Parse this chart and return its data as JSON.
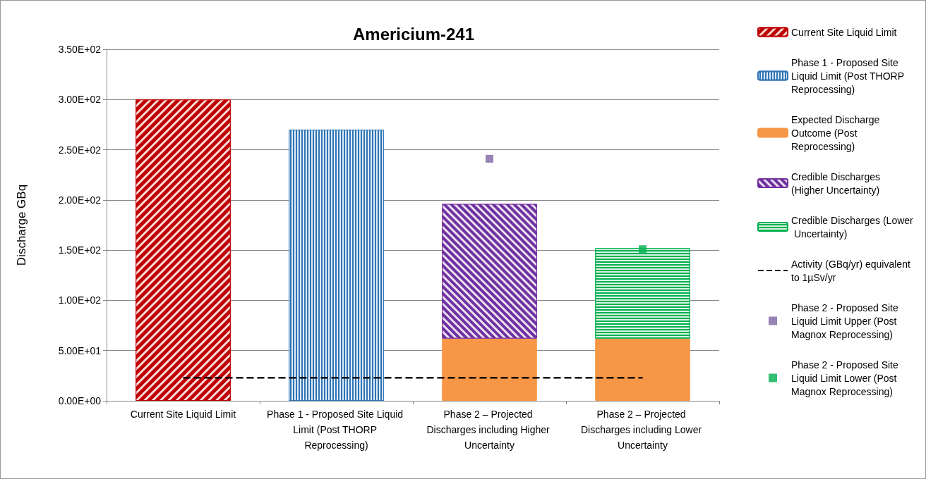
{
  "chart_data": {
    "type": "bar",
    "title": "Americium-241",
    "ylabel": "Discharge GBq",
    "categories": [
      "Current Site Liquid Limit",
      "Phase 1 - Proposed Site Liquid Limit (Post THORP Reprocessing)",
      "Phase 2 – Projected Discharges including Higher Uncertainty",
      "Phase 2 – Projected Discharges including Lower Uncertainty"
    ],
    "stacked": true,
    "grid": "y",
    "legend": "right",
    "ylim": [
      0,
      350
    ],
    "yticks": [
      {
        "value": 0,
        "label": "0.00E+00"
      },
      {
        "value": 50,
        "label": "5.00E+01"
      },
      {
        "value": 100,
        "label": "1.00E+02"
      },
      {
        "value": 150,
        "label": "1.50E+02"
      },
      {
        "value": 200,
        "label": "2.00E+02"
      },
      {
        "value": 250,
        "label": "2.50E+02"
      },
      {
        "value": 300,
        "label": "3.00E+02"
      },
      {
        "value": 350,
        "label": "3.50E+02"
      }
    ],
    "series": [
      {
        "name": "Current Site Liquid Limit",
        "color": "#c00000",
        "values": [
          300,
          null,
          null,
          null
        ]
      },
      {
        "name": "Phase 1 - Proposed Site Liquid Limit (Post THORP Reprocessing)",
        "color": "#2e75b6",
        "values": [
          null,
          270,
          null,
          null
        ]
      },
      {
        "name": "Expected Discharge Outcome (Post Reprocessing)",
        "color": "#f79646",
        "values": [
          null,
          null,
          62,
          62
        ]
      },
      {
        "name": "Credible Discharges (Higher Uncertainty)",
        "color": "#7030a0",
        "values": [
          null,
          null,
          134,
          null
        ]
      },
      {
        "name": "Credible Discharges (Lower Uncertainty)",
        "color": "#00b050",
        "values": [
          null,
          null,
          null,
          90
        ]
      },
      {
        "name": "Activity (GBq/yr) equivalent to 1µSv/yr",
        "type": "line",
        "color": "#000000",
        "line_style": "dashed",
        "marker": "none",
        "values": [
          23,
          23,
          23,
          23
        ]
      },
      {
        "name": "Phase 2 - Proposed Site Liquid Limit Upper (Post Magnox Reprocessing)",
        "type": "scatter",
        "marker": "square",
        "color": "#8064a2",
        "values": [
          null,
          null,
          241,
          null
        ]
      },
      {
        "name": "Phase 2 - Proposed Site Liquid Limit Lower (Post Magnox Reprocessing)",
        "type": "scatter",
        "marker": "square",
        "color": "#00b050",
        "values": [
          null,
          null,
          null,
          151
        ]
      }
    ]
  }
}
